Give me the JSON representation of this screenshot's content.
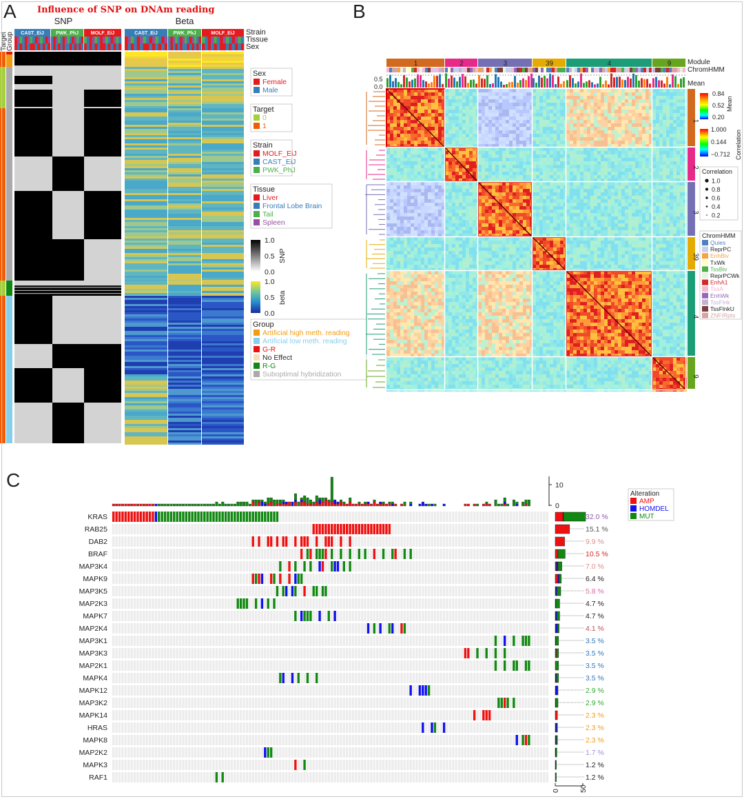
{
  "chart_data": [
    {
      "panel": "A",
      "type": "heatmap",
      "title": "Influence of SNP on DNAm reading",
      "matrix_titles": [
        "SNP",
        "Beta"
      ],
      "row_annotation_labels": [
        "Target",
        "Group"
      ],
      "column_annotation_labels": [
        "Strain",
        "Tissue",
        "Sex"
      ],
      "column_groups": [
        "CAST_EiJ",
        "PWK_PhJ",
        "MOLF_EiJ"
      ],
      "legends": [
        {
          "title": "Sex",
          "entries": [
            {
              "label": "Female",
              "color": "#e41a1c"
            },
            {
              "label": "Male",
              "color": "#377eb8"
            }
          ]
        },
        {
          "title": "Target",
          "entries": [
            {
              "label": "0",
              "color": "#a6cf3a"
            },
            {
              "label": "1",
              "color": "#f25c05"
            }
          ]
        },
        {
          "title": "Strain",
          "entries": [
            {
              "label": "MOLF_EiJ",
              "color": "#e41a1c"
            },
            {
              "label": "CAST_EiJ",
              "color": "#377eb8"
            },
            {
              "label": "PWK_PhJ",
              "color": "#4daf4a"
            }
          ]
        },
        {
          "title": "Tissue",
          "entries": [
            {
              "label": "Liver",
              "color": "#e41a1c"
            },
            {
              "label": "Frontal Lobe Brain",
              "color": "#377eb8"
            },
            {
              "label": "Tail",
              "color": "#4daf4a"
            },
            {
              "label": "Spleen",
              "color": "#984ea3"
            }
          ]
        },
        {
          "title": "Group",
          "entries": [
            {
              "label": "Artificial high meth. reading",
              "color": "#f39c12"
            },
            {
              "label": "Artificial low meth. reading",
              "color": "#87ceeb"
            },
            {
              "label": "G-R",
              "color": "#ee1111"
            },
            {
              "label": "No Effect",
              "color": "#f5deb3"
            },
            {
              "label": "R-G",
              "color": "#118811"
            },
            {
              "label": "Suboptimal hybridization",
              "color": "#aaaaaa"
            }
          ]
        }
      ],
      "colorbars": [
        {
          "title": "SNP",
          "ticks": [
            "1.0",
            "0.5",
            "0.0"
          ]
        },
        {
          "title": "beta",
          "ticks": [
            "1.0",
            "0.5",
            "0.0"
          ]
        }
      ],
      "group_rows": [
        {
          "target": "1",
          "group": "G-R",
          "snp": [
            0,
            0,
            0
          ],
          "beta": [
            "high",
            "high",
            "high"
          ]
        },
        {
          "target": "1",
          "group": "Artificial high meth. reading",
          "snp": [
            0,
            0,
            0
          ],
          "beta": [
            "high",
            "high",
            "high"
          ]
        },
        {
          "target": "0",
          "group": "Suboptimal hybridization",
          "snp": [
            0,
            0,
            0
          ],
          "beta": [
            "mid",
            "mid",
            "mid"
          ]
        },
        {
          "target": "1",
          "group": "Suboptimal hybridization",
          "snp": [
            1,
            0,
            0
          ],
          "beta": [
            "mid",
            "mid",
            "mid"
          ]
        },
        {
          "target": "0",
          "group": "R-G",
          "snp": [
            0,
            0,
            0
          ],
          "beta": [
            "mid",
            "mid",
            "mid"
          ]
        },
        {
          "target": "1",
          "group": "Artificial low meth. reading",
          "snp": [
            1,
            0,
            1
          ],
          "beta": [
            "low",
            "low",
            "low"
          ]
        }
      ]
    },
    {
      "panel": "B",
      "type": "heatmap",
      "modules": [
        "1",
        "2",
        "3",
        "39",
        "4",
        "9"
      ],
      "module_colors": [
        "#d2691e",
        "#e7298a",
        "#7570b3",
        "#e6ab02",
        "#1b9e77",
        "#66a61e"
      ],
      "track_labels": [
        "Module",
        "ChromHMM",
        "Mean"
      ],
      "mean_axis_ticks": [
        "0.5",
        "0.0"
      ],
      "colorbars": [
        {
          "title": "Mean",
          "ticks": [
            "0.84",
            "0.52",
            "0.20"
          ]
        },
        {
          "title": "Correlation",
          "ticks": [
            "1.000",
            "0.144",
            "−0.712"
          ]
        }
      ],
      "size_legend": {
        "title": "Correlation",
        "values": [
          "1.0",
          "0.8",
          "0.6",
          "0.4",
          "0.2"
        ]
      },
      "chromhmm_legend": {
        "title": "ChromHMM",
        "entries": [
          {
            "label": "Quies",
            "color": "#4f7fbf"
          },
          {
            "label": "ReprPC",
            "color": "#c6cfe8"
          },
          {
            "label": "EnhBiv",
            "color": "#f4a442"
          },
          {
            "label": "TxWk",
            "color": "#ffffcc"
          },
          {
            "label": "TssBiv",
            "color": "#4daf4a"
          },
          {
            "label": "ReprPCWk",
            "color": "#e8f3e0"
          },
          {
            "label": "EnhA1",
            "color": "#d62728"
          },
          {
            "label": "TsaA",
            "color": "#f7b6d2"
          },
          {
            "label": "EnhWk",
            "color": "#9467bd"
          },
          {
            "label": "TssFlnk",
            "color": "#c5b0d5"
          },
          {
            "label": "TssFlnkU",
            "color": "#7b3f3f"
          },
          {
            "label": "ZNF/Rpts",
            "color": "#d9a3a3"
          }
        ]
      }
    },
    {
      "panel": "C",
      "type": "oncoprint",
      "legend_title": "Alteration",
      "alteration_types": [
        {
          "label": "AMP",
          "color": "#ee1111"
        },
        {
          "label": "HOMDEL",
          "color": "#1111ee"
        },
        {
          "label": "MUT",
          "color": "#118811"
        }
      ],
      "top_axis_ticks": [
        "10",
        "0"
      ],
      "side_axis_ticks": [
        "0",
        "50"
      ],
      "genes": [
        {
          "name": "KRAS",
          "percent": "32.0 %",
          "amp": 14,
          "homdel": 1,
          "mut": 40,
          "pct_color": "#8e5aa8"
        },
        {
          "name": "RAB25",
          "percent": "15.1 %",
          "amp": 26,
          "homdel": 0,
          "mut": 0,
          "pct_color": "#555555"
        },
        {
          "name": "DAB2",
          "percent": "9.9 %",
          "amp": 17,
          "homdel": 0,
          "mut": 0,
          "pct_color": "#e08a8a"
        },
        {
          "name": "BRAF",
          "percent": "10.5 %",
          "amp": 5,
          "homdel": 0,
          "mut": 13,
          "pct_color": "#dd2222"
        },
        {
          "name": "MAP3K4",
          "percent": "7.0 %",
          "amp": 2,
          "homdel": 3,
          "mut": 7,
          "pct_color": "#e08a8a"
        },
        {
          "name": "MAPK9",
          "percent": "6.4 %",
          "amp": 5,
          "homdel": 2,
          "mut": 4,
          "pct_color": "#222222"
        },
        {
          "name": "MAP3K5",
          "percent": "5.8 %",
          "amp": 1,
          "homdel": 2,
          "mut": 7,
          "pct_color": "#dd66aa"
        },
        {
          "name": "MAP2K3",
          "percent": "4.7 %",
          "amp": 0,
          "homdel": 1,
          "mut": 7,
          "pct_color": "#222222"
        },
        {
          "name": "MAPK7",
          "percent": "4.7 %",
          "amp": 0,
          "homdel": 3,
          "mut": 5,
          "pct_color": "#222222"
        },
        {
          "name": "MAP2K4",
          "percent": "4.1 %",
          "amp": 1,
          "homdel": 3,
          "mut": 3,
          "pct_color": "#c0504d"
        },
        {
          "name": "MAP3K1",
          "percent": "3.5 %",
          "amp": 0,
          "homdel": 1,
          "mut": 5,
          "pct_color": "#3377bb"
        },
        {
          "name": "MAP3K3",
          "percent": "3.5 %",
          "amp": 2,
          "homdel": 0,
          "mut": 4,
          "pct_color": "#3377bb"
        },
        {
          "name": "MAP2K1",
          "percent": "3.5 %",
          "amp": 0,
          "homdel": 0,
          "mut": 6,
          "pct_color": "#3377bb"
        },
        {
          "name": "MAPK4",
          "percent": "3.5 %",
          "amp": 0,
          "homdel": 2,
          "mut": 4,
          "pct_color": "#3377bb"
        },
        {
          "name": "MAPK12",
          "percent": "2.9 %",
          "amp": 0,
          "homdel": 4,
          "mut": 1,
          "pct_color": "#33aa33"
        },
        {
          "name": "MAP3K2",
          "percent": "2.9 %",
          "amp": 1,
          "homdel": 0,
          "mut": 4,
          "pct_color": "#33aa33"
        },
        {
          "name": "MAPK14",
          "percent": "2.3 %",
          "amp": 4,
          "homdel": 0,
          "mut": 0,
          "pct_color": "#f39c12"
        },
        {
          "name": "HRAS",
          "percent": "2.3 %",
          "amp": 0,
          "homdel": 3,
          "mut": 1,
          "pct_color": "#f39c12"
        },
        {
          "name": "MAPK8",
          "percent": "2.3 %",
          "amp": 1,
          "homdel": 1,
          "mut": 2,
          "pct_color": "#f39c12"
        },
        {
          "name": "MAP2K2",
          "percent": "1.7 %",
          "amp": 0,
          "homdel": 1,
          "mut": 2,
          "pct_color": "#a58ed6"
        },
        {
          "name": "MAPK3",
          "percent": "1.2 %",
          "amp": 1,
          "homdel": 0,
          "mut": 1,
          "pct_color": "#222222"
        },
        {
          "name": "RAF1",
          "percent": "1.2 %",
          "amp": 0,
          "homdel": 0,
          "mut": 2,
          "pct_color": "#222222"
        }
      ]
    }
  ]
}
